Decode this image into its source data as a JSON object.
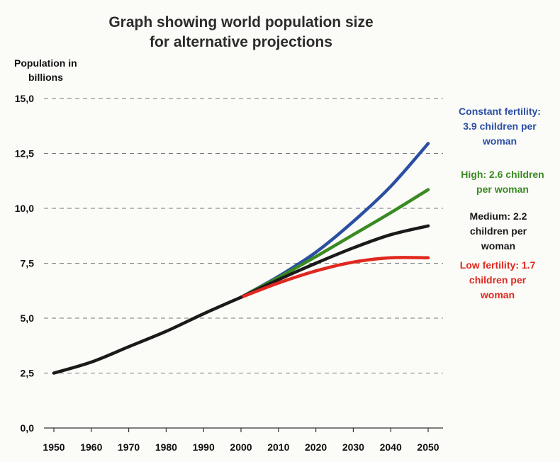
{
  "chart_data": {
    "type": "line",
    "title": [
      "Graph showing world population size",
      "for alternative  projections"
    ],
    "ylabel": [
      "Population in",
      "billions"
    ],
    "xlabel": "",
    "ylim": [
      0,
      15
    ],
    "xlim": [
      1950,
      2050
    ],
    "grid": "horizontal-dashed",
    "y_ticks": [
      {
        "value": 0,
        "label": "0,0"
      },
      {
        "value": 2.5,
        "label": "2,5"
      },
      {
        "value": 5,
        "label": "5,0"
      },
      {
        "value": 7.5,
        "label": "7,5"
      },
      {
        "value": 10,
        "label": "10,0"
      },
      {
        "value": 12.5,
        "label": "12,5"
      },
      {
        "value": 15,
        "label": "15,0"
      }
    ],
    "x_ticks": [
      1950,
      1960,
      1970,
      1980,
      1990,
      2000,
      2010,
      2020,
      2030,
      2040,
      2050
    ],
    "historical": {
      "color": "#1a1a1a",
      "x": [
        1950,
        1960,
        1970,
        1980,
        1990,
        2000
      ],
      "y": [
        2.5,
        3.0,
        3.7,
        4.4,
        5.2,
        5.95
      ]
    },
    "series": [
      {
        "name": [
          "Constant fertility:",
          "3.9 children per",
          "woman"
        ],
        "color": "#2a4fa3",
        "x": [
          2000,
          2010,
          2020,
          2030,
          2040,
          2050
        ],
        "y": [
          5.95,
          6.9,
          8.0,
          9.4,
          11.0,
          12.95
        ]
      },
      {
        "name": [
          "High: 2.6 children",
          "per woman"
        ],
        "color": "#3a8a22",
        "x": [
          2000,
          2010,
          2020,
          2030,
          2040,
          2050
        ],
        "y": [
          5.95,
          6.85,
          7.8,
          8.8,
          9.8,
          10.85
        ]
      },
      {
        "name": [
          "Medium: 2.2",
          "children per",
          "woman"
        ],
        "color": "#1a1a1a",
        "x": [
          2000,
          2010,
          2020,
          2030,
          2040,
          2050
        ],
        "y": [
          5.95,
          6.75,
          7.5,
          8.2,
          8.8,
          9.2
        ]
      },
      {
        "name": [
          "Low fertility: 1.7",
          "children per",
          "woman"
        ],
        "color": "#e0281e",
        "x": [
          2000,
          2010,
          2020,
          2030,
          2040,
          2050
        ],
        "y": [
          5.95,
          6.6,
          7.15,
          7.55,
          7.75,
          7.75
        ]
      }
    ]
  }
}
